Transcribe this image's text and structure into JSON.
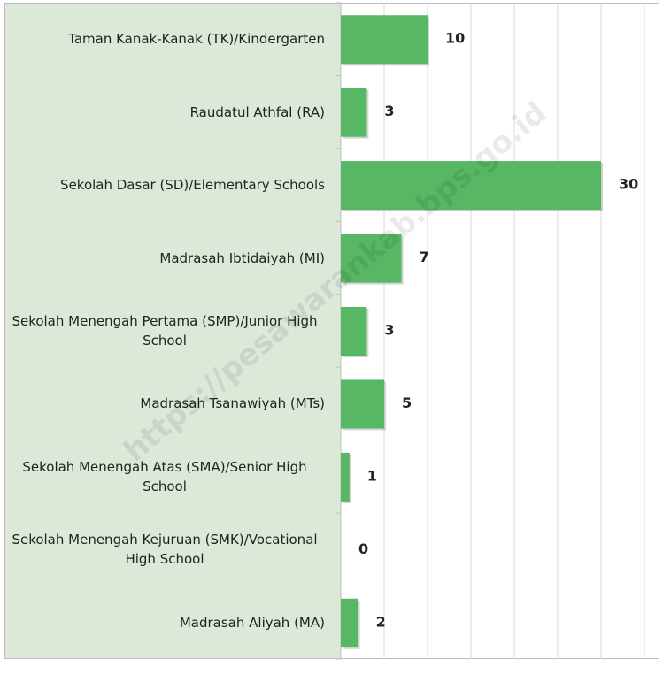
{
  "chart_data": {
    "type": "bar",
    "orientation": "horizontal",
    "categories": [
      "Taman Kanak-Kanak (TK)/Kindergarten",
      "Raudatul Athfal (RA)",
      "Sekolah Dasar (SD)/Elementary Schools",
      "Madrasah Ibtidaiyah (MI)",
      "Sekolah Menengah Pertama (SMP)/Junior High School",
      "Madrasah Tsanawiyah (MTs)",
      "Sekolah Menengah Atas (SMA)/Senior High School",
      "Sekolah Menengah Kejuruan (SMK)/Vocational High School",
      "Madrasah Aliyah (MA)"
    ],
    "values": [
      10,
      3,
      30,
      7,
      3,
      5,
      1,
      0,
      2
    ],
    "color": "#57b764",
    "xlim": [
      0,
      35
    ],
    "xticks": [
      0,
      5,
      10,
      15,
      20,
      25,
      30,
      35
    ],
    "grid": true,
    "watermark": "https://pesawarankab.bps.go.id"
  }
}
